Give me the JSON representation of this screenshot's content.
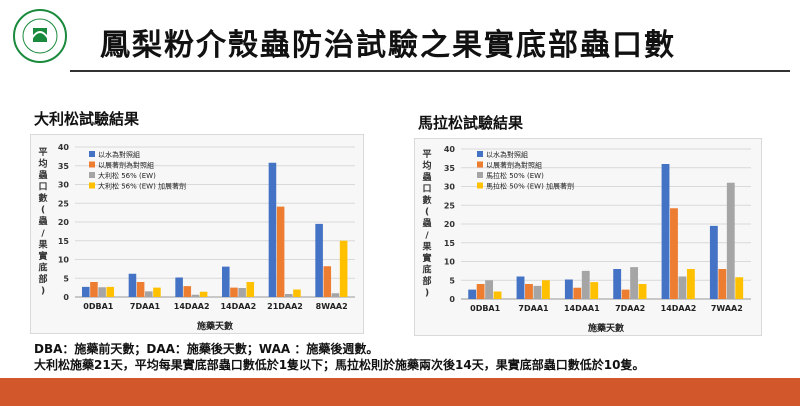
{
  "header": {
    "title": "鳳梨粉介殼蟲防治試驗之果實底部蟲口數",
    "logo_text": "農業試驗所農業化學"
  },
  "left_section": {
    "subtitle": "大利松試驗結果"
  },
  "right_section": {
    "subtitle": "馬拉松試驗結果"
  },
  "footnotes": {
    "line1": "DBA：施藥前天數；DAA：施藥後天數；WAA ：施藥後週數。",
    "line2": "大利松施藥21天，平均每果實底部蟲口數低於1隻以下；馬拉松則於施藥兩次後14天，果實底部蟲口數低於10隻。"
  },
  "colors": {
    "blue": "#4472c4",
    "orange": "#ed7d31",
    "gray": "#a5a5a5",
    "yellow": "#ffc000",
    "bar": "#d2572a",
    "logo": "#1a8a3c"
  },
  "chart_data": [
    {
      "type": "bar",
      "ylabel": "平均蟲口數(蟲/果實底部)",
      "xlabel": "施藥天數",
      "ylim": [
        0,
        40
      ],
      "yticks": [
        0,
        5,
        10,
        15,
        20,
        25,
        30,
        35,
        40
      ],
      "categories": [
        "0DBA1",
        "7DAA1",
        "14DAA2",
        "14DAA2",
        "21DAA2",
        "8WAA2"
      ],
      "series": [
        {
          "name": "以水為對照組",
          "color": "#4472c4",
          "values": [
            2.7,
            6.2,
            5.2,
            8.1,
            35.8,
            19.5
          ]
        },
        {
          "name": "以展著劑為對照組",
          "color": "#ed7d31",
          "values": [
            4.0,
            4.0,
            2.9,
            2.5,
            24.1,
            8.2
          ]
        },
        {
          "name": "大利松 56% (EW)",
          "color": "#a5a5a5",
          "values": [
            2.6,
            1.5,
            0.6,
            2.4,
            0.8,
            1.0
          ]
        },
        {
          "name": "大利松 56% (EW) 加展著劑",
          "color": "#ffc000",
          "values": [
            2.7,
            2.5,
            1.4,
            4.0,
            2.0,
            15.0
          ]
        }
      ]
    },
    {
      "type": "bar",
      "ylabel": "平均蟲口數(蟲/果實底部)",
      "xlabel": "施藥天數",
      "ylim": [
        0,
        40
      ],
      "yticks": [
        0,
        5,
        10,
        15,
        20,
        25,
        30,
        35,
        40
      ],
      "categories": [
        "0DBA1",
        "7DAA1",
        "14DAA1",
        "7DAA2",
        "14DAA2",
        "7WAA2"
      ],
      "series": [
        {
          "name": "以水為對照組",
          "color": "#4472c4",
          "values": [
            2.5,
            6.0,
            5.2,
            8.0,
            36.0,
            19.5
          ]
        },
        {
          "name": "以展著劑為對照組",
          "color": "#ed7d31",
          "values": [
            4.0,
            4.0,
            3.0,
            2.5,
            24.2,
            8.0
          ]
        },
        {
          "name": "馬拉松 50% (EW)",
          "color": "#a5a5a5",
          "values": [
            5.0,
            3.5,
            7.5,
            8.5,
            6.0,
            31.0
          ]
        },
        {
          "name": "馬拉松 50% (EW) 加展著劑",
          "color": "#ffc000",
          "values": [
            2.0,
            5.0,
            4.5,
            4.0,
            8.0,
            5.8
          ]
        }
      ]
    }
  ]
}
